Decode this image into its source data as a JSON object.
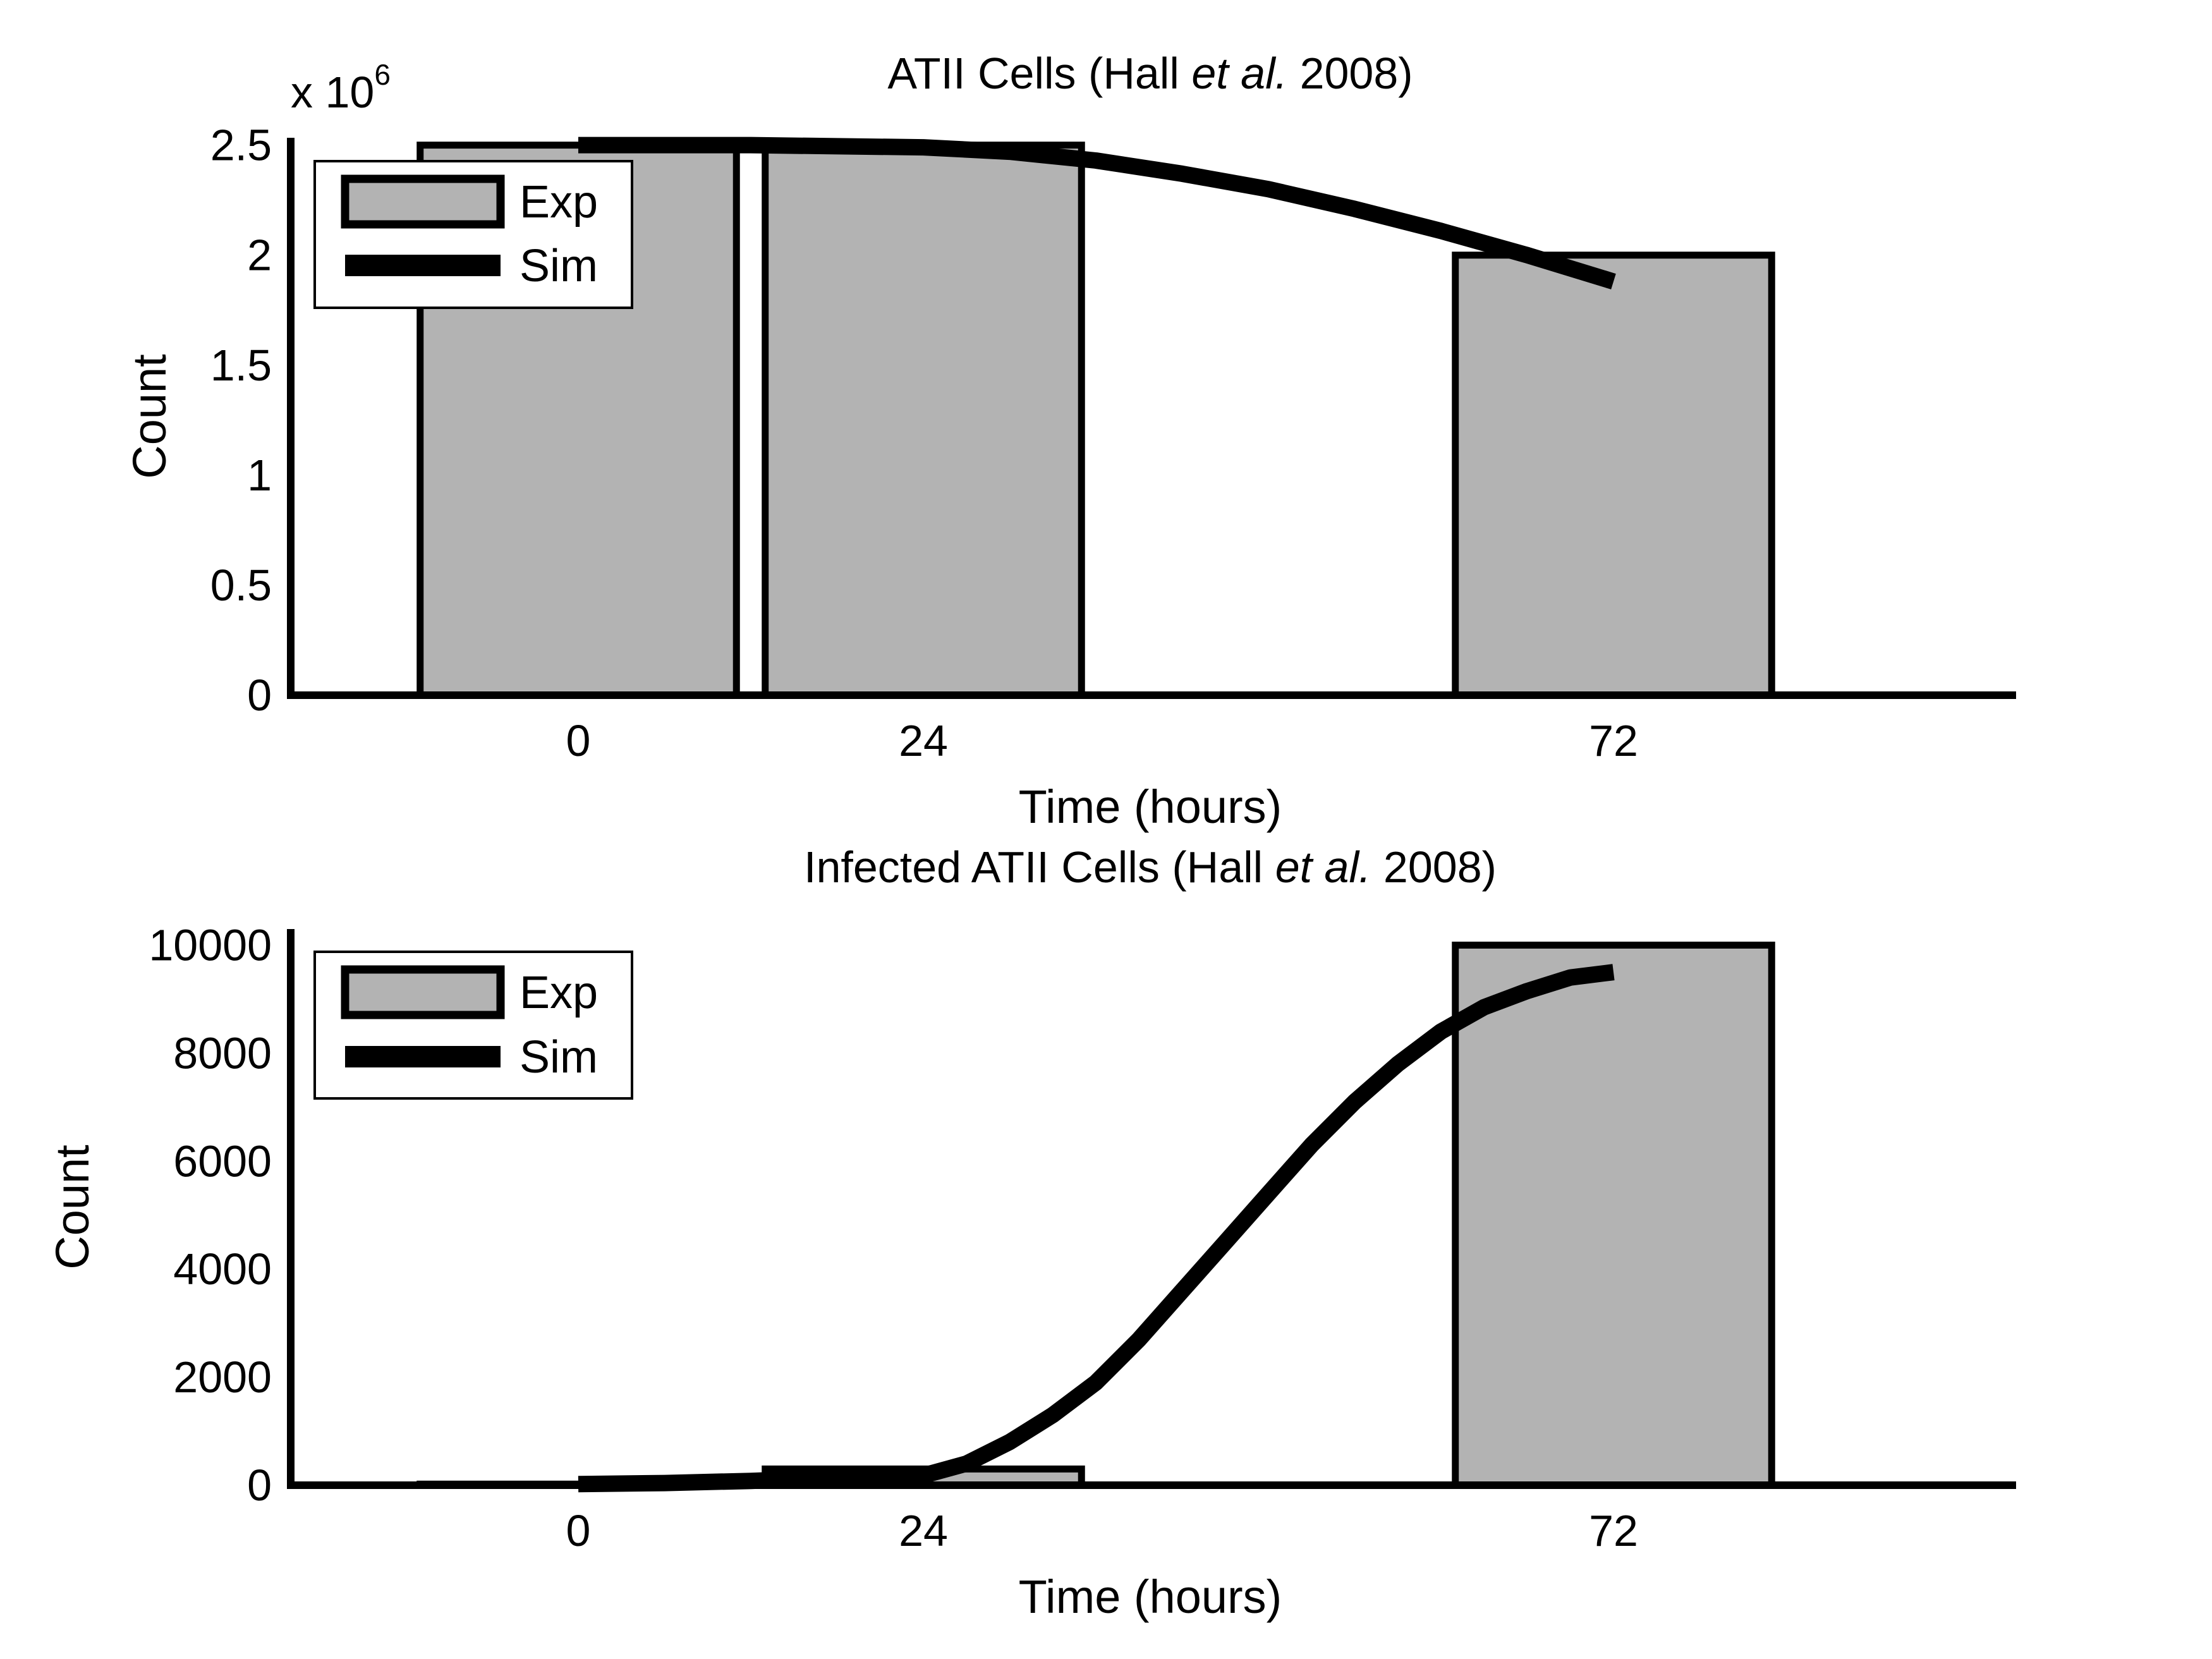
{
  "colors": {
    "bar_fill": "#b3b3b3",
    "bar_stroke": "#000000",
    "sim_line": "#000000",
    "axis": "#000000",
    "background": "#ffffff"
  },
  "chart_data": [
    {
      "type": "bar",
      "title_parts": [
        "ATII Cells (Hall ",
        "et al.",
        " 2008)"
      ],
      "x_tick_labels": [
        "0",
        "24",
        "72"
      ],
      "xlabel": "Time (hours)",
      "ylabel": "Count",
      "y_multiplier_label": "x 10",
      "y_multiplier_exponent": "6",
      "y_tick_labels": [
        "0",
        "0.5",
        "1",
        "1.5",
        "2",
        "2.5"
      ],
      "y_tick_values": [
        0,
        0.5,
        1,
        1.5,
        2,
        2.5
      ],
      "xlim": [
        -20,
        100
      ],
      "ylim": [
        0,
        2.7
      ],
      "bars": [
        {
          "x_from": -11,
          "x_to": 11,
          "value": 2.5
        },
        {
          "x_from": 13,
          "x_to": 35,
          "value": 2.5
        },
        {
          "x_from": 61,
          "x_to": 83,
          "value": 2.0
        }
      ],
      "series": [
        {
          "name": "Sim",
          "x": [
            0,
            6,
            12,
            18,
            24,
            30,
            36,
            42,
            48,
            54,
            60,
            66,
            72
          ],
          "values": [
            2.5,
            2.5,
            2.5,
            2.495,
            2.49,
            2.47,
            2.43,
            2.37,
            2.3,
            2.21,
            2.11,
            2.0,
            1.88
          ]
        }
      ],
      "legend": {
        "position": "top-left",
        "entries": [
          "Exp",
          "Sim"
        ]
      }
    },
    {
      "type": "bar",
      "title_parts": [
        "Infected ATII Cells (Hall ",
        "et al.",
        " 2008)"
      ],
      "x_tick_labels": [
        "0",
        "24",
        "72"
      ],
      "xlabel": "Time (hours)",
      "ylabel": "Count",
      "y_tick_labels": [
        "0",
        "2000",
        "4000",
        "6000",
        "8000",
        "10000"
      ],
      "y_tick_values": [
        0,
        2000,
        4000,
        6000,
        8000,
        10000
      ],
      "xlim": [
        -20,
        100
      ],
      "ylim": [
        0,
        11000
      ],
      "bars": [
        {
          "x_from": -11,
          "x_to": 11,
          "value": 20
        },
        {
          "x_from": 13,
          "x_to": 35,
          "value": 300
        },
        {
          "x_from": 61,
          "x_to": 83,
          "value": 10000
        }
      ],
      "series": [
        {
          "name": "Sim",
          "x": [
            0,
            6,
            12,
            18,
            24,
            27,
            30,
            33,
            36,
            39,
            42,
            45,
            48,
            51,
            54,
            57,
            60,
            63,
            66,
            69,
            72
          ],
          "values": [
            20,
            40,
            80,
            140,
            180,
            400,
            800,
            1300,
            1900,
            2700,
            3600,
            4500,
            5400,
            6300,
            7100,
            7800,
            8400,
            8850,
            9150,
            9400,
            9500
          ]
        }
      ],
      "legend": {
        "position": "top-left",
        "entries": [
          "Exp",
          "Sim"
        ]
      }
    }
  ]
}
